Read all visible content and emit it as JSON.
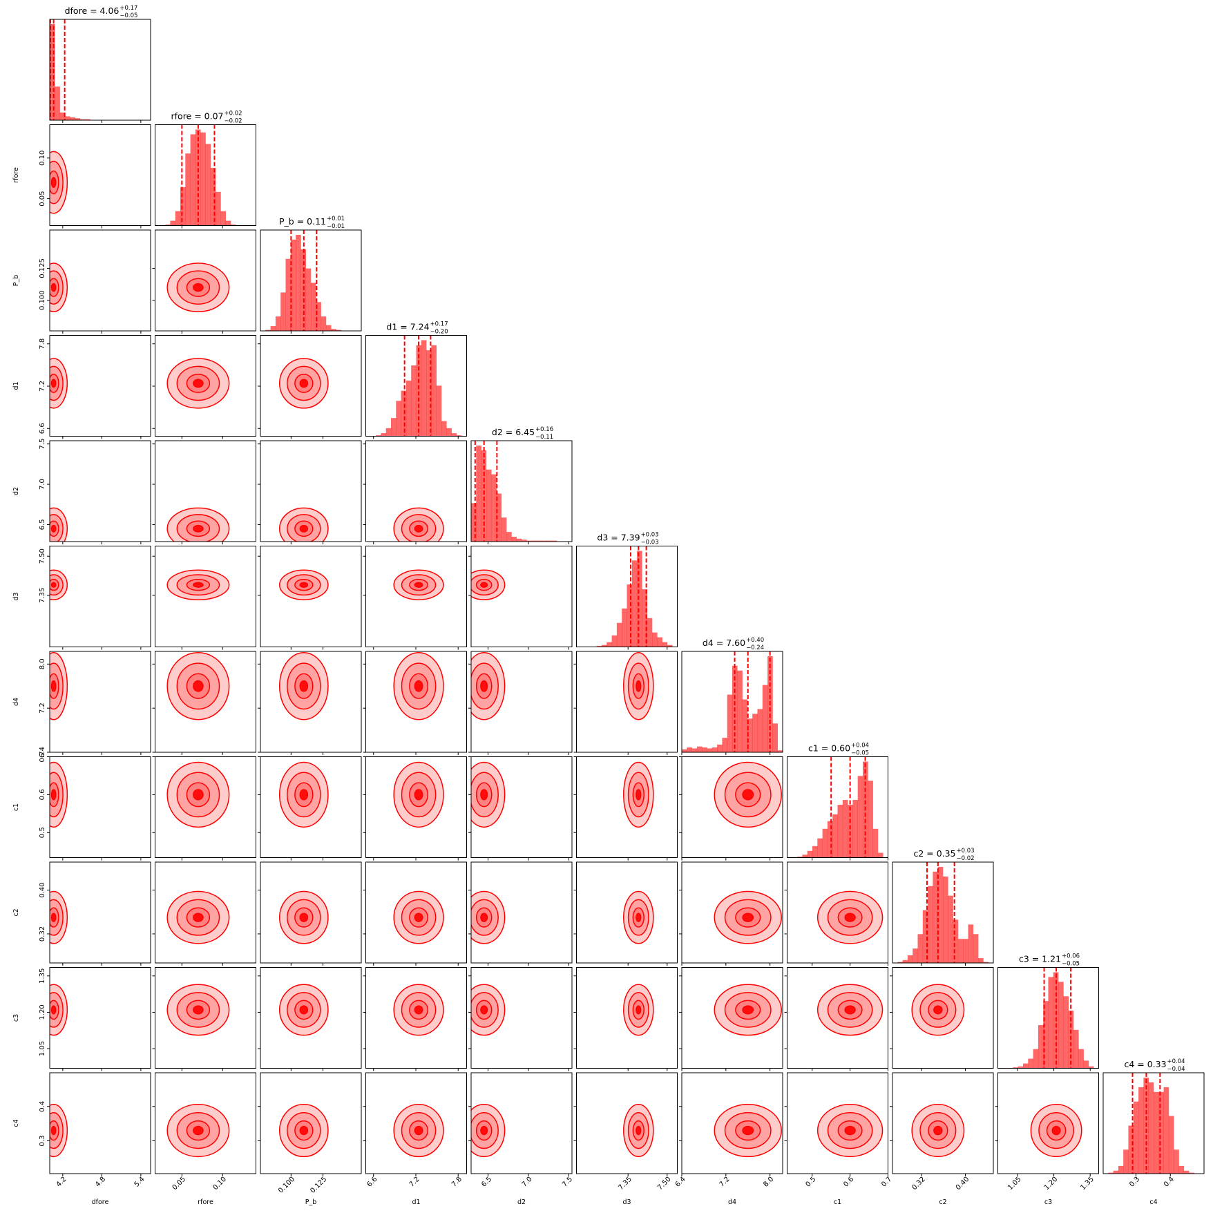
{
  "chart_data": {
    "type": "corner",
    "color": "#ff0000",
    "params": [
      {
        "name": "dfore",
        "title": "dfore = 4.06",
        "upper": "+0.17",
        "lower": "−0.05",
        "lim": [
          4.0,
          5.55
        ],
        "ticks": [
          4.2,
          4.8,
          5.4
        ],
        "quantiles": [
          4.01,
          4.06,
          4.23
        ],
        "hist": [
          1.0,
          0.35,
          0.08,
          0.04,
          0.03,
          0.02,
          0.01,
          0.01,
          0,
          0,
          0,
          0,
          0,
          0,
          0,
          0,
          0,
          0,
          0,
          0
        ]
      },
      {
        "name": "rfore",
        "title": "rfore = 0.07",
        "upper": "+0.02",
        "lower": "−0.02",
        "lim": [
          0.017,
          0.141
        ],
        "ticks": [
          0.05,
          {
            "value": 0.1,
            "label": "0.10"
          }
        ],
        "quantiles": [
          0.05,
          0.07,
          0.09
        ],
        "hist": [
          0,
          0,
          0.01,
          0.05,
          0.15,
          0.4,
          0.75,
          0.95,
          1.0,
          0.97,
          0.85,
          0.6,
          0.35,
          0.15,
          0.05,
          0.01,
          0,
          0,
          0,
          0
        ]
      },
      {
        "name": "P_b",
        "title": "P_b = 0.11",
        "upper": "+0.01",
        "lower": "−0.01",
        "lim": [
          0.076,
          0.155
        ],
        "ticks": [
          {
            "value": 0.1,
            "label": "0.100"
          },
          0.125
        ],
        "quantiles": [
          0.1,
          0.11,
          0.12
        ],
        "hist": [
          0,
          0.01,
          0.05,
          0.15,
          0.4,
          0.75,
          0.95,
          1.0,
          0.85,
          0.65,
          0.5,
          0.3,
          0.15,
          0.06,
          0.02,
          0.01,
          0,
          0,
          0,
          0
        ]
      },
      {
        "name": "d1",
        "title": "d1 = 7.24",
        "upper": "+0.17",
        "lower": "−0.20",
        "lim": [
          6.49,
          7.92
        ],
        "ticks": [
          6.6,
          7.2,
          7.8
        ],
        "quantiles": [
          7.04,
          7.24,
          7.41
        ],
        "hist": [
          0,
          0,
          0.01,
          0.03,
          0.08,
          0.18,
          0.35,
          0.45,
          0.55,
          0.7,
          0.9,
          0.95,
          0.85,
          0.9,
          0.5,
          0.15,
          0.08,
          0.03,
          0.01,
          0
        ]
      },
      {
        "name": "d2",
        "title": "d2 = 6.45",
        "upper": "+0.16",
        "lower": "−0.11",
        "lim": [
          6.29,
          7.54
        ],
        "ticks": [
          6.5,
          {
            "value": 7,
            "label": "7.0"
          },
          7.5
        ],
        "quantiles": [
          6.34,
          6.45,
          6.61
        ],
        "hist": [
          0.4,
          1.0,
          0.95,
          0.75,
          0.7,
          0.5,
          0.25,
          0.1,
          0.05,
          0.03,
          0.02,
          0.01,
          0.01,
          0.01,
          0.01,
          0.01,
          0.01,
          0,
          0,
          0
        ]
      },
      {
        "name": "d3",
        "title": "d3 = 7.39",
        "upper": "+0.03",
        "lower": "−0.03",
        "lim": [
          7.152,
          7.539
        ],
        "ticks": [
          7.35,
          {
            "value": 7.5,
            "label": "7.50"
          }
        ],
        "quantiles": [
          7.36,
          7.39,
          7.42
        ],
        "hist": [
          0,
          0,
          0,
          0,
          0.01,
          0.02,
          0.05,
          0.12,
          0.25,
          0.4,
          0.65,
          0.9,
          1.0,
          0.6,
          0.3,
          0.15,
          0.1,
          0.05,
          0.02,
          0
        ]
      },
      {
        "name": "d4",
        "title": "d4 = 7.60",
        "upper": "+0.40",
        "lower": "−0.24",
        "lim": [
          6.4,
          8.23
        ],
        "ticks": [
          6.4,
          7.2,
          {
            "value": 8,
            "label": "8.0"
          }
        ],
        "quantiles": [
          7.36,
          7.6,
          8.0
        ],
        "hist": [
          0.03,
          0.05,
          0.04,
          0.06,
          0.05,
          0.04,
          0.05,
          0.08,
          0.15,
          0.6,
          0.9,
          0.85,
          0.55,
          0.35,
          0.4,
          0.45,
          0.7,
          1.0,
          0.3,
          0.02
        ]
      },
      {
        "name": "c1",
        "title": "c1 = 0.60",
        "upper": "+0.04",
        "lower": "−0.05",
        "lim": [
          0.434,
          0.7
        ],
        "ticks": [
          0.5,
          0.6,
          0.7
        ],
        "quantiles": [
          0.55,
          0.6,
          0.64
        ],
        "hist": [
          0,
          0,
          0.01,
          0.03,
          0.07,
          0.12,
          0.2,
          0.3,
          0.38,
          0.45,
          0.55,
          0.6,
          0.55,
          0.6,
          0.85,
          1.0,
          0.8,
          0.3,
          0.05,
          0
        ]
      },
      {
        "name": "c2",
        "title": "c2 = 0.35",
        "upper": "+0.03",
        "lower": "−0.02",
        "lim": [
          0.267,
          0.451
        ],
        "ticks": [
          0.32,
          {
            "value": 0.4,
            "label": "0.40"
          }
        ],
        "quantiles": [
          0.33,
          0.35,
          0.38
        ],
        "hist": [
          0,
          0.01,
          0.03,
          0.08,
          0.15,
          0.3,
          0.55,
          0.8,
          0.95,
          1.0,
          0.9,
          0.7,
          0.45,
          0.25,
          0.25,
          0.4,
          0.3,
          0.05,
          0.01,
          0
        ]
      },
      {
        "name": "c3",
        "title": "c3 = 1.21",
        "upper": "+0.06",
        "lower": "−0.05",
        "lim": [
          0.969,
          1.385
        ],
        "ticks": [
          1.05,
          {
            "value": 1.2,
            "label": "1.20"
          },
          1.35
        ],
        "quantiles": [
          1.16,
          1.21,
          1.27
        ],
        "hist": [
          0,
          0,
          0,
          0.01,
          0.02,
          0.05,
          0.1,
          0.2,
          0.45,
          0.7,
          0.95,
          1.0,
          0.9,
          0.75,
          0.6,
          0.4,
          0.2,
          0.08,
          0.02,
          0
        ]
      },
      {
        "name": "c4",
        "title": "c4 = 0.33",
        "upper": "+0.04",
        "lower": "−0.04",
        "lim": [
          0.2045,
          0.498
        ],
        "ticks": [
          0.3,
          0.4
        ],
        "quantiles": [
          0.29,
          0.33,
          0.37
        ],
        "hist": [
          0,
          0.01,
          0.03,
          0.08,
          0.25,
          0.5,
          0.75,
          0.9,
          1.0,
          0.95,
          0.85,
          0.85,
          0.9,
          0.6,
          0.25,
          0.08,
          0.03,
          0.01,
          0,
          0
        ]
      }
    ]
  }
}
